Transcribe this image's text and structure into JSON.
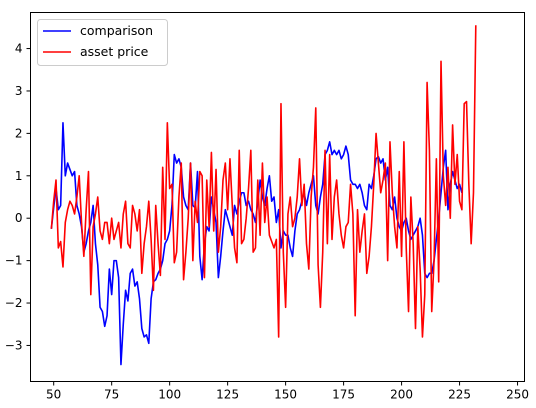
{
  "chart_data": {
    "type": "line",
    "title": "",
    "xlabel": "",
    "ylabel": "",
    "xlim": [
      40,
      253
    ],
    "ylim": [
      -3.85,
      4.85
    ],
    "xticks": [
      50,
      75,
      100,
      125,
      150,
      175,
      200,
      225,
      250
    ],
    "yticks": [
      -3,
      -2,
      -1,
      0,
      1,
      2,
      3,
      4
    ],
    "grid": false,
    "legend": {
      "position": "top-left"
    },
    "x_start": 49,
    "series": [
      {
        "name": "comparison",
        "color": "#0000ff",
        "values": [
          -0.25,
          0.25,
          0.7,
          0.2,
          0.3,
          2.25,
          1.0,
          1.3,
          1.15,
          1.0,
          1.1,
          0.3,
          0.1,
          -0.2,
          -0.8,
          -0.6,
          -0.3,
          -0.1,
          0.3,
          -0.6,
          -1.1,
          -2.1,
          -2.2,
          -2.55,
          -2.3,
          -1.2,
          -1.8,
          -1.0,
          -1.0,
          -1.4,
          -3.45,
          -2.5,
          -1.7,
          -1.95,
          -1.3,
          -1.2,
          -1.6,
          -1.5,
          -1.9,
          -2.6,
          -2.8,
          -2.75,
          -2.95,
          -1.9,
          -1.5,
          -1.45,
          -1.3,
          -1.2,
          -1.0,
          -0.6,
          -0.5,
          -0.3,
          0.3,
          1.5,
          1.3,
          1.4,
          1.2,
          0.5,
          0.3,
          0.2,
          1.3,
          0.3,
          0.25,
          1.1,
          -0.9,
          -1.45,
          -0.6,
          -0.2,
          -0.3,
          0.5,
          0.2,
          -0.1,
          -1.4,
          -0.9,
          -0.3,
          0.2,
          0.0,
          -0.2,
          -0.4,
          0.3,
          0.1,
          0.4,
          0.6,
          0.6,
          0.3,
          0.4,
          0.2,
          0.1,
          -0.1,
          0.4,
          0.9,
          0.5,
          0.3,
          0.7,
          1.0,
          0.4,
          0.5,
          -0.1,
          0.2,
          -0.7,
          -0.3,
          -0.4,
          -0.4,
          -0.7,
          -0.9,
          -0.3,
          0.1,
          0.2,
          0.4,
          0.6,
          0.3,
          0.6,
          0.8,
          1.0,
          0.3,
          0.1,
          0.5,
          0.8,
          1.5,
          1.6,
          1.8,
          1.5,
          1.6,
          1.5,
          1.6,
          1.4,
          1.5,
          1.7,
          1.5,
          0.9,
          0.8,
          0.8,
          0.7,
          0.8,
          0.6,
          0.3,
          0.2,
          0.8,
          0.7,
          1.0,
          1.4,
          1.45,
          1.3,
          1.4,
          0.9,
          1.2,
          0.3,
          0.2,
          0.5,
          0.0,
          -0.2,
          -0.3,
          -0.1,
          0.0,
          -0.3,
          -0.5,
          -0.4,
          -0.3,
          -0.2,
          0.0,
          -0.4,
          -1.3,
          -1.4,
          -1.3,
          -1.3,
          -1.0,
          -0.5,
          0.0,
          0.6,
          1.2,
          1.6,
          0.2,
          0.8,
          1.1,
          0.9,
          0.7,
          0.8,
          0.6
        ]
      },
      {
        "name": "asset price",
        "color": "#ff0000",
        "values": [
          -0.25,
          0.4,
          0.9,
          -0.7,
          -0.55,
          -1.15,
          -0.1,
          0.2,
          0.4,
          0.3,
          0.1,
          0.5,
          1.0,
          -0.1,
          -0.9,
          0.2,
          1.1,
          -1.8,
          -0.2,
          0.1,
          0.5,
          -0.3,
          -0.5,
          -0.1,
          -0.1,
          -0.6,
          0.0,
          -0.5,
          -0.3,
          -0.1,
          -0.7,
          0.1,
          0.4,
          -0.6,
          -0.7,
          0.3,
          0.1,
          -0.3,
          0.2,
          -1.3,
          -0.6,
          -0.2,
          0.4,
          -0.5,
          -1.7,
          0.3,
          -0.6,
          -1.35,
          1.2,
          -0.5,
          2.25,
          0.7,
          0.8,
          -1.05,
          -0.8,
          0.5,
          1.3,
          -1.45,
          -0.8,
          0.0,
          1.3,
          -1.0,
          0.4,
          -0.1,
          1.1,
          1.0,
          -1.4,
          0.9,
          -0.2,
          1.55,
          -0.3,
          1.15,
          -0.8,
          -0.2,
          0.9,
          1.3,
          0.2,
          1.4,
          0.3,
          -0.7,
          -1.05,
          1.6,
          -0.6,
          -0.5,
          0.0,
          0.7,
          1.6,
          -0.8,
          -0.7,
          0.9,
          -0.4,
          1.3,
          -0.1,
          0.5,
          -0.4,
          -0.55,
          -0.7,
          -0.5,
          -2.8,
          2.7,
          -0.8,
          -2.1,
          0.1,
          0.5,
          -0.2,
          0.0,
          0.5,
          1.4,
          0.3,
          0.8,
          -0.6,
          -1.2,
          0.5,
          1.2,
          2.6,
          -1.1,
          -2.1,
          -0.8,
          1.6,
          -0.6,
          1.5,
          -0.5,
          0.5,
          0.9,
          0.1,
          -0.4,
          -0.7,
          -0.2,
          -0.1,
          0.8,
          0.1,
          -2.3,
          0.2,
          -0.8,
          -0.3,
          0.1,
          -1.3,
          -0.9,
          -0.2,
          0.8,
          2.0,
          1.3,
          0.6,
          0.9,
          1.3,
          -1.0,
          1.8,
          0.6,
          -0.2,
          -0.7,
          1.1,
          -0.9,
          1.8,
          -0.7,
          -2.2,
          0.5,
          -0.6,
          -2.6,
          -0.2,
          -1.2,
          -2.8,
          -1.8,
          3.2,
          1.6,
          -2.2,
          -1.0,
          1.4,
          -1.5,
          3.7,
          1.0,
          0.3,
          1.2,
          0.0,
          2.2,
          0.8,
          1.5,
          0.4,
          0.2,
          2.7,
          2.75,
          0.8,
          -0.6,
          0.6,
          4.55
        ]
      }
    ]
  }
}
